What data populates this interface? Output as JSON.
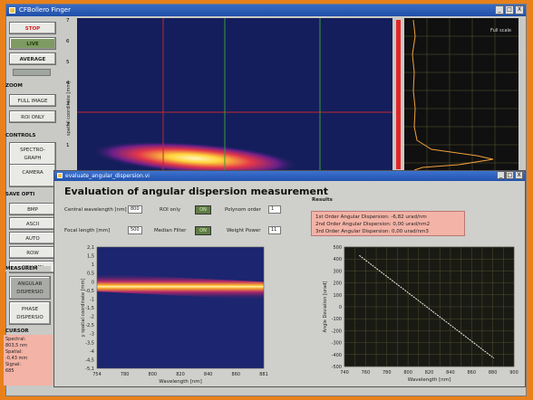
{
  "window": {
    "title": "CFBollero Finger"
  },
  "window_buttons": [
    "_",
    "□",
    "X"
  ],
  "left_panel": {
    "stop": "STOP",
    "live": "LIVE",
    "average": "AVERAGE",
    "zoom_header": "ZOOM",
    "full_image": "FULL IMAGE",
    "roi_only": "ROI ONLY",
    "controls_header": "CONTROLS",
    "spectrograph_l1": "SPECTRO-",
    "spectrograph_l2": "GRAPH",
    "camera": "CAMERA",
    "save_header": "SAVE OPTI",
    "save_items": [
      "BMP",
      "ASCII",
      "AUTO",
      "ROW",
      "COLUMN"
    ],
    "measure_header": "MEASUREM",
    "angular_l1": "ANGULAR",
    "angular_l2": "DISPERSIO",
    "phase_l1": "PHASE",
    "phase_l2": "DISPERSIO",
    "cursor_header": "CURSOR",
    "cursor_lines": [
      "Spectral:",
      "803,5 nm",
      "Spatial:",
      "-0,43 mm",
      "Signal:",
      "685"
    ]
  },
  "spectrogram": {
    "ylabel": "spatial coordinate [mm]",
    "yticks": [
      "7",
      "6",
      "5",
      "4",
      "3",
      "2",
      "1"
    ],
    "colors": {
      "background": "#141e5c",
      "crosshair_red": "#c0282c",
      "crosshair_green": "#3a9a3a"
    }
  },
  "profile": {
    "label": "Full scale"
  },
  "dialog": {
    "titlebar": "evaluate_angular_dispersion.vi",
    "heading": "Evaluation of angular dispersion measurement",
    "central_wavelength_label": "Central wavelength [nm]",
    "central_wavelength_value": "800",
    "focal_length_label": "Focal length [mm]",
    "focal_length_value": "500",
    "roi_only_label": "ROI only",
    "roi_only_state": "ON",
    "median_filter_label": "Median Filter",
    "median_filter_state": "ON",
    "polynom_order_label": "Polynom order",
    "polynom_order_value": "1",
    "weight_power_label": "Weight Power",
    "weight_power_value": "11",
    "results_header": "Results",
    "results_lines": [
      "1st Order Angular Dispersion: -6,82 urad/nm",
      "2nd Order Angular Dispersion: 0,00 urad/nm2",
      "3rd Order Angular Dispersion: 0,00 urad/nm3"
    ]
  },
  "chart_data": [
    {
      "type": "heatmap",
      "xlabel": "Wavelength [nm]",
      "ylabel": "y spatial coordinate [mm]",
      "xticks": [
        "754",
        "780",
        "800",
        "820",
        "840",
        "860",
        "881"
      ],
      "yticks": [
        "2,1",
        "1,5",
        "1",
        "0,5",
        "0",
        "-0,5",
        "-1",
        "-1,5",
        "-2",
        "-2,5",
        "-3",
        "-3,5",
        "-4",
        "-4,5",
        "-5,1"
      ],
      "xlim": [
        754,
        881
      ],
      "ylim": [
        -5.1,
        2.1
      ],
      "ridge": {
        "x": [
          754,
          881
        ],
        "y": [
          0.0,
          -0.5
        ]
      }
    },
    {
      "type": "line",
      "xlabel": "Wavelength [nm]",
      "ylabel": "Angle Deviation [urad]",
      "xlim": [
        740,
        900
      ],
      "ylim": [
        -500,
        500
      ],
      "xticks": [
        "740",
        "750",
        "760",
        "770",
        "780",
        "790",
        "800",
        "810",
        "820",
        "830",
        "840",
        "850",
        "860",
        "870",
        "880",
        "890",
        "900"
      ],
      "yticks": [
        "500",
        "400",
        "300",
        "200",
        "100",
        "0",
        "-100",
        "-200",
        "-300",
        "-400",
        "-500"
      ],
      "series": [
        {
          "x": [
            754,
            881
          ],
          "y": [
            430,
            -430
          ]
        }
      ],
      "grid": true
    }
  ]
}
